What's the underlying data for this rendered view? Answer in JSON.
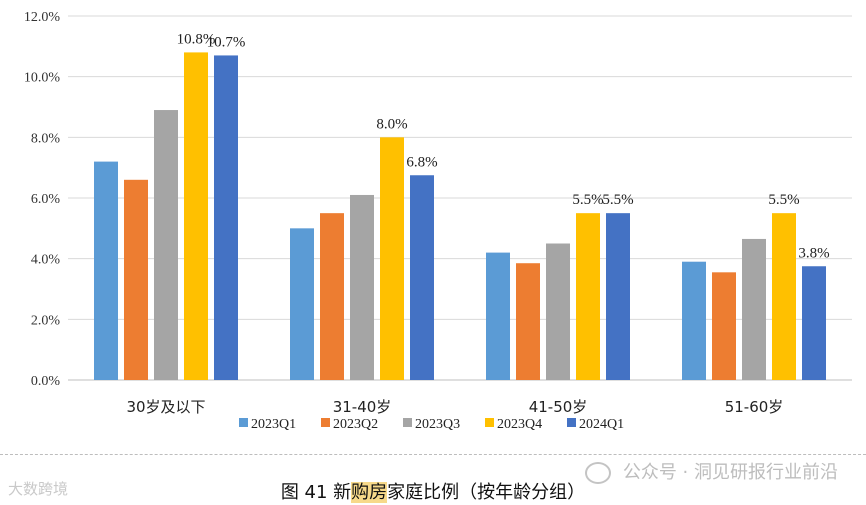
{
  "chart_data": {
    "type": "bar",
    "categories": [
      "30岁及以下",
      "31-40岁",
      "41-50岁",
      "51-60岁"
    ],
    "series": [
      {
        "name": "2023Q1",
        "color": "#5b9bd5",
        "values": [
          7.2,
          5.0,
          4.2,
          3.9
        ]
      },
      {
        "name": "2023Q2",
        "color": "#ed7d31",
        "values": [
          6.6,
          5.5,
          3.85,
          3.55
        ]
      },
      {
        "name": "2023Q3",
        "color": "#a5a5a5",
        "values": [
          8.9,
          6.1,
          4.5,
          4.65
        ]
      },
      {
        "name": "2023Q4",
        "color": "#ffc000",
        "values": [
          10.8,
          8.0,
          5.5,
          5.5
        ]
      },
      {
        "name": "2024Q1",
        "color": "#4472c4",
        "values": [
          10.7,
          6.75,
          5.5,
          3.75
        ]
      }
    ],
    "data_labels": [
      {
        "series": 3,
        "category": 0,
        "text": "10.8%"
      },
      {
        "series": 4,
        "category": 0,
        "text": "10.7%"
      },
      {
        "series": 3,
        "category": 1,
        "text": "8.0%"
      },
      {
        "series": 4,
        "category": 1,
        "text": "6.8%"
      },
      {
        "series": 3,
        "category": 2,
        "text": "5.5%"
      },
      {
        "series": 4,
        "category": 2,
        "text": "5.5%"
      },
      {
        "series": 3,
        "category": 3,
        "text": "5.5%"
      },
      {
        "series": 4,
        "category": 3,
        "text": "3.8%"
      }
    ],
    "ylim": [
      0,
      12
    ],
    "yticks": [
      0,
      2,
      4,
      6,
      8,
      10,
      12
    ],
    "ytick_labels": [
      "0.0%",
      "2.0%",
      "4.0%",
      "6.0%",
      "8.0%",
      "10.0%",
      "12.0%"
    ],
    "grid": true,
    "legend_position": "bottom"
  },
  "caption": {
    "prefix": "图 41 新",
    "highlight": "购房",
    "suffix": "家庭比例（按年龄分组）"
  },
  "watermark_left": "大数跨境",
  "watermark_right": "公众号 · 洞见研报行业前沿"
}
